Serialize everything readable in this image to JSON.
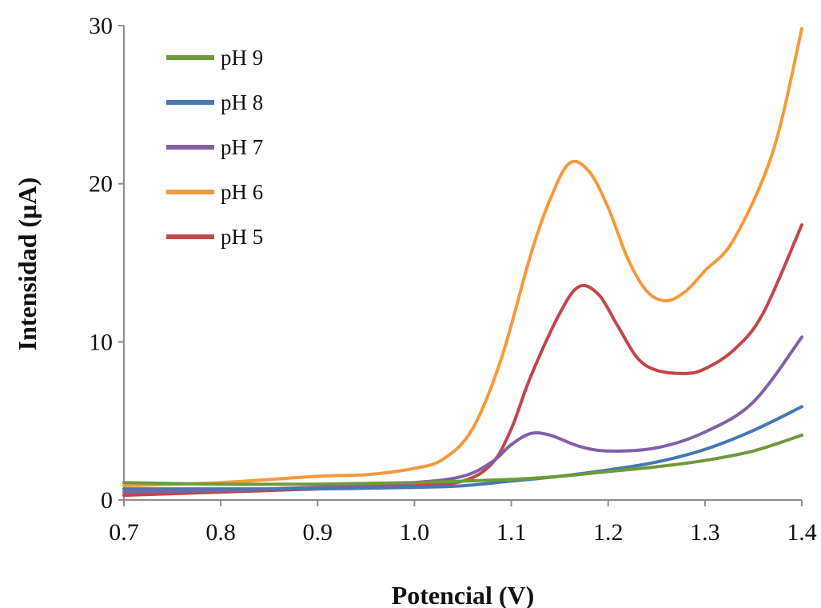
{
  "chart_data": {
    "type": "line",
    "title": "",
    "xlabel": "Potencial (V)",
    "ylabel": "Intensidad (µA)",
    "xlim": [
      0.7,
      1.4
    ],
    "ylim": [
      0,
      30
    ],
    "x_ticks": [
      "0.7",
      "0.8",
      "0.9",
      "1.0",
      "1.1",
      "1.2",
      "1.3",
      "1.4"
    ],
    "y_ticks": [
      "0",
      "10",
      "20",
      "30"
    ],
    "grid": false,
    "legend_position": "top-left",
    "series": [
      {
        "name": "pH 9",
        "color": "#6f9a3a",
        "points": [
          [
            0.7,
            1.1
          ],
          [
            0.8,
            1.0
          ],
          [
            0.9,
            1.0
          ],
          [
            1.0,
            1.1
          ],
          [
            1.1,
            1.3
          ],
          [
            1.15,
            1.5
          ],
          [
            1.2,
            1.8
          ],
          [
            1.25,
            2.1
          ],
          [
            1.3,
            2.5
          ],
          [
            1.35,
            3.1
          ],
          [
            1.4,
            4.1
          ]
        ]
      },
      {
        "name": "pH 8",
        "color": "#4678b4",
        "points": [
          [
            0.7,
            0.7
          ],
          [
            0.8,
            0.7
          ],
          [
            0.9,
            0.7
          ],
          [
            1.0,
            0.8
          ],
          [
            1.05,
            0.9
          ],
          [
            1.1,
            1.2
          ],
          [
            1.15,
            1.5
          ],
          [
            1.2,
            1.9
          ],
          [
            1.25,
            2.4
          ],
          [
            1.3,
            3.2
          ],
          [
            1.35,
            4.4
          ],
          [
            1.4,
            5.9
          ]
        ]
      },
      {
        "name": "pH 7",
        "color": "#8061a6",
        "points": [
          [
            0.7,
            0.5
          ],
          [
            0.8,
            0.6
          ],
          [
            0.9,
            0.8
          ],
          [
            1.0,
            1.1
          ],
          [
            1.05,
            1.5
          ],
          [
            1.08,
            2.4
          ],
          [
            1.1,
            3.5
          ],
          [
            1.12,
            4.2
          ],
          [
            1.14,
            4.1
          ],
          [
            1.17,
            3.4
          ],
          [
            1.2,
            3.1
          ],
          [
            1.25,
            3.3
          ],
          [
            1.3,
            4.3
          ],
          [
            1.35,
            6.2
          ],
          [
            1.4,
            10.3
          ]
        ]
      },
      {
        "name": "pH 6",
        "color": "#f59a3c",
        "points": [
          [
            0.7,
            0.9
          ],
          [
            0.8,
            1.1
          ],
          [
            0.9,
            1.5
          ],
          [
            0.95,
            1.6
          ],
          [
            1.0,
            2.0
          ],
          [
            1.03,
            2.6
          ],
          [
            1.06,
            4.5
          ],
          [
            1.09,
            9.0
          ],
          [
            1.12,
            15.5
          ],
          [
            1.14,
            19.0
          ],
          [
            1.16,
            21.3
          ],
          [
            1.18,
            20.8
          ],
          [
            1.2,
            18.5
          ],
          [
            1.22,
            15.3
          ],
          [
            1.24,
            13.2
          ],
          [
            1.26,
            12.6
          ],
          [
            1.28,
            13.2
          ],
          [
            1.3,
            14.5
          ],
          [
            1.33,
            16.5
          ],
          [
            1.37,
            22.0
          ],
          [
            1.4,
            29.8
          ]
        ]
      },
      {
        "name": "pH 5",
        "color": "#c0474a",
        "points": [
          [
            0.7,
            0.3
          ],
          [
            0.8,
            0.5
          ],
          [
            0.9,
            0.7
          ],
          [
            1.0,
            0.9
          ],
          [
            1.05,
            1.2
          ],
          [
            1.08,
            2.3
          ],
          [
            1.1,
            4.5
          ],
          [
            1.12,
            7.8
          ],
          [
            1.15,
            11.8
          ],
          [
            1.17,
            13.5
          ],
          [
            1.19,
            13.0
          ],
          [
            1.21,
            11.0
          ],
          [
            1.23,
            9.0
          ],
          [
            1.25,
            8.2
          ],
          [
            1.28,
            8.0
          ],
          [
            1.3,
            8.3
          ],
          [
            1.33,
            9.5
          ],
          [
            1.36,
            11.8
          ],
          [
            1.4,
            17.4
          ]
        ]
      }
    ]
  }
}
